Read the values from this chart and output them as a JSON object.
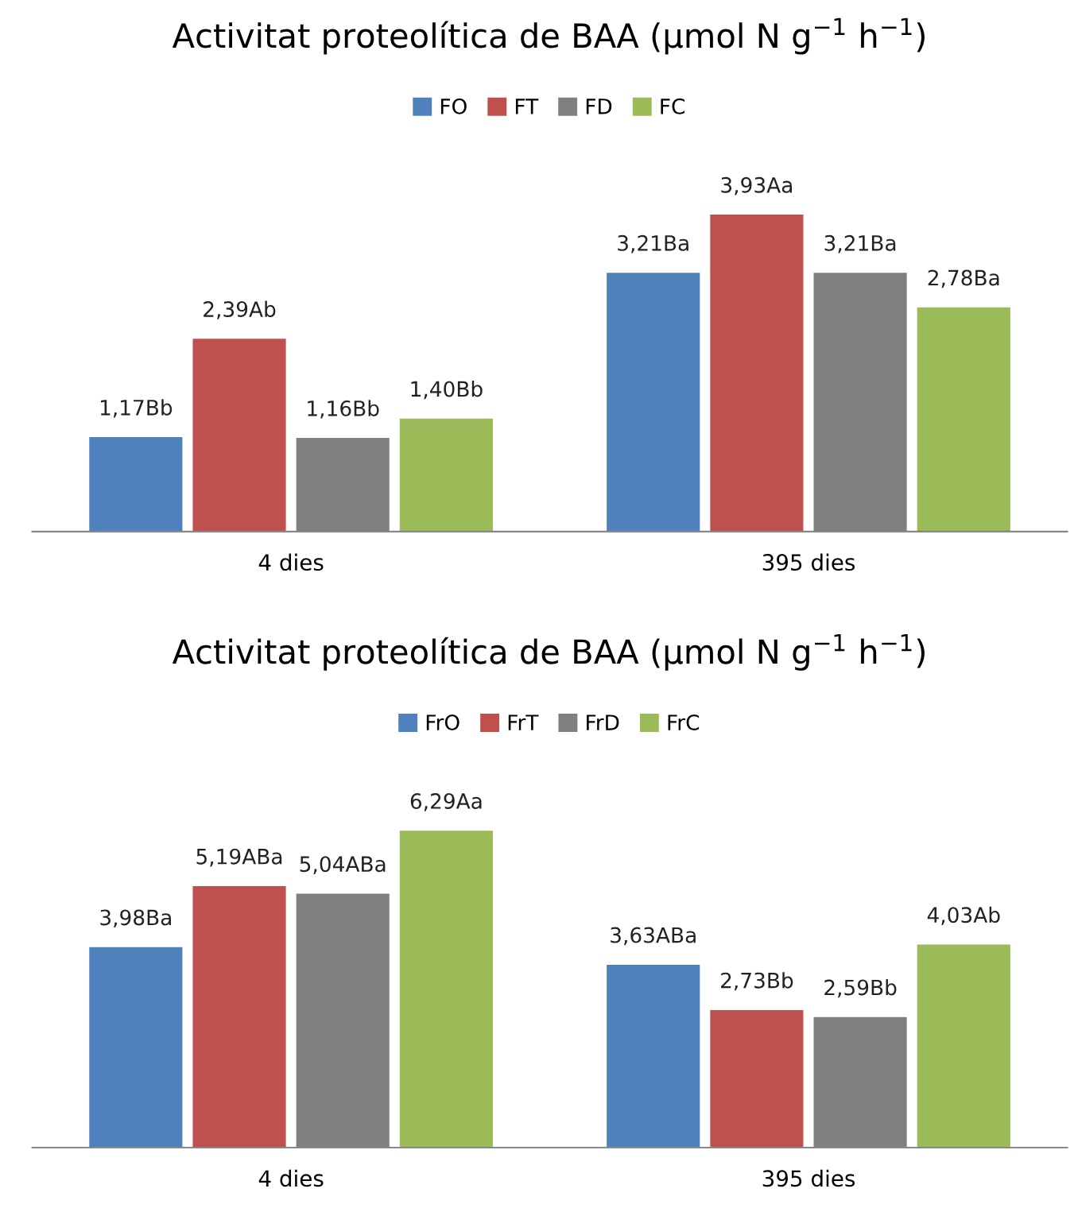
{
  "chart_data": [
    {
      "type": "bar",
      "title": "Activitat proteolítica de BAA (μmol N g$^{−1}$ h$^{−1}$)",
      "categories": [
        "4 dies",
        "395 dies"
      ],
      "legend": "top",
      "grid": false,
      "series": [
        {
          "name": "FO",
          "color": "#4f81bd",
          "values": [
            1.17,
            3.21
          ],
          "value_labels": [
            "1,17Bb",
            "3,21Ba"
          ]
        },
        {
          "name": "FT",
          "color": "#c0504d",
          "values": [
            2.39,
            3.93
          ],
          "value_labels": [
            "2,39Ab",
            "3,93Aa"
          ]
        },
        {
          "name": "FD",
          "color": "#808080",
          "values": [
            1.16,
            3.21
          ],
          "value_labels": [
            "1,16Bb",
            "3,21Ba"
          ]
        },
        {
          "name": "FC",
          "color": "#9bbb59",
          "values": [
            1.4,
            2.78
          ],
          "value_labels": [
            "1,40Bb",
            "2,78Ba"
          ]
        }
      ]
    },
    {
      "type": "bar",
      "title": "Activitat proteolítica de BAA (μmol N g$^{−1}$ h$^{−1}$)",
      "categories": [
        "4 dies",
        "395 dies"
      ],
      "legend": "top",
      "grid": false,
      "series": [
        {
          "name": "FrO",
          "color": "#4f81bd",
          "values": [
            3.98,
            3.63
          ],
          "value_labels": [
            "3,98Ba",
            "3,63ABa"
          ]
        },
        {
          "name": "FrT",
          "color": "#c0504d",
          "values": [
            5.19,
            2.73
          ],
          "value_labels": [
            "5,19ABa",
            "2,73Bb"
          ]
        },
        {
          "name": "FrD",
          "color": "#808080",
          "values": [
            5.04,
            2.59
          ],
          "value_labels": [
            "5,04ABa",
            "2,59Bb"
          ]
        },
        {
          "name": "FrC",
          "color": "#9bbb59",
          "values": [
            6.29,
            4.03
          ],
          "value_labels": [
            "6,29Aa",
            "4,03Ab"
          ]
        }
      ]
    }
  ]
}
